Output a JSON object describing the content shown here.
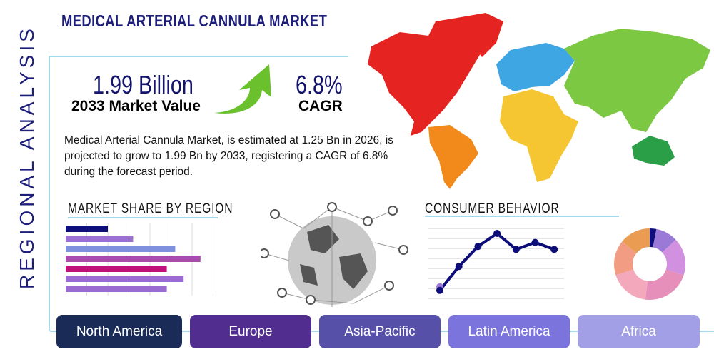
{
  "title": "MEDICAL ARTERIAL CANNULA MARKET",
  "side_label": "REGIONAL ANALYSIS",
  "market_value": {
    "value": "1.99 Billion",
    "label": "2033 Market Value"
  },
  "cagr": {
    "value": "6.8%",
    "label": "CAGR"
  },
  "description": "Medical Arterial Cannula Market, is estimated at 1.25 Bn in 2026, is projected to grow to 1.99 Bn by 2033, registering a CAGR of 6.8% during the forecast period.",
  "sections": {
    "market_share": "MARKET SHARE BY REGION",
    "consumer": "CONSUMER BEHAVIOR"
  },
  "regions": [
    {
      "label": "North America",
      "color": "#1b2b57"
    },
    {
      "label": "Europe",
      "color": "#512d8f"
    },
    {
      "label": "Asia-Pacific",
      "color": "#5650a8"
    },
    {
      "label": "Latin America",
      "color": "#7a74dc"
    },
    {
      "label": "Africa",
      "color": "#a29fe6"
    }
  ],
  "map_colors": {
    "north_america": "#e52421",
    "europe": "#3ea6e3",
    "asia": "#7cc843",
    "africa": "#f6c632",
    "south_america": "#f28a1b",
    "australia": "#2b9f48"
  },
  "chart_data": [
    {
      "type": "bar",
      "orientation": "horizontal",
      "values": [
        2.0,
        3.2,
        5.2,
        6.4,
        4.8,
        5.6,
        4.8
      ],
      "colors": [
        "#0e0e7c",
        "#9a70d2",
        "#7f90df",
        "#a94bad",
        "#c1107b",
        "#9a6bd1",
        "#9a6bd1"
      ],
      "xlim": [
        0,
        7
      ],
      "grid": true
    },
    {
      "type": "line",
      "values": [
        0.8,
        3.2,
        5.2,
        6.5,
        4.9,
        5.6,
        4.9
      ],
      "ylim": [
        0,
        7
      ],
      "color": "#0d0d7a",
      "grid": true
    },
    {
      "type": "pie",
      "donut": true,
      "values": [
        3,
        10,
        17,
        22,
        18,
        16,
        14
      ],
      "colors": [
        "#0e0e7c",
        "#9a7ad6",
        "#d190e0",
        "#e58fba",
        "#f4a8bc",
        "#f29c83",
        "#e99c52"
      ]
    }
  ]
}
